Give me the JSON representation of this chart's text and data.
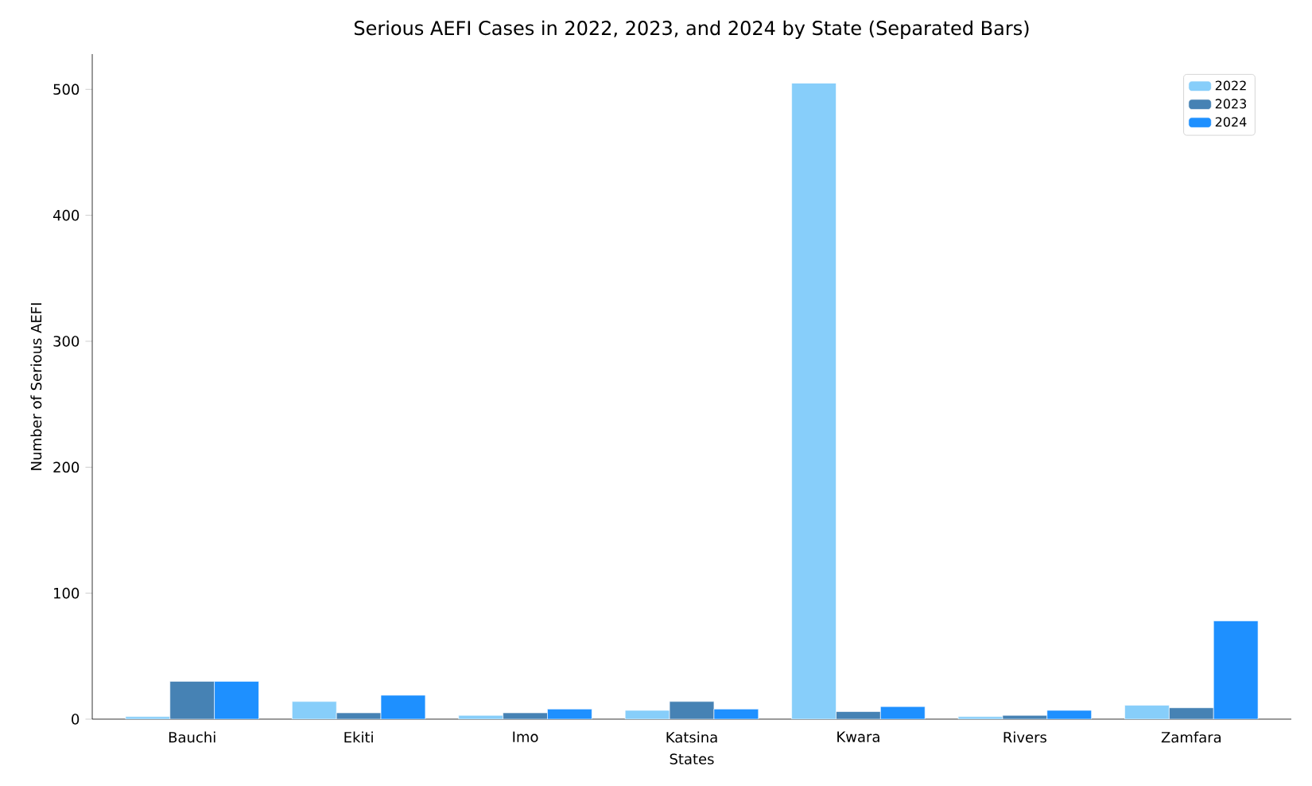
{
  "chart_data": {
    "type": "bar",
    "title": "Serious AEFI Cases in 2022, 2023, and 2024 by State (Separated Bars)",
    "xlabel": "States",
    "ylabel": "Number of Serious AEFI",
    "categories": [
      "Bauchi",
      "Ekiti",
      "Imo",
      "Katsina",
      "Kwara",
      "Rivers",
      "Zamfara"
    ],
    "series": [
      {
        "name": "2022",
        "color": "#87cefa",
        "values": [
          2,
          14,
          3,
          7,
          505,
          2,
          11
        ]
      },
      {
        "name": "2023",
        "color": "#4682b4",
        "values": [
          30,
          5,
          5,
          14,
          6,
          3,
          9
        ]
      },
      {
        "name": "2024",
        "color": "#1e90ff",
        "values": [
          30,
          19,
          8,
          8,
          10,
          7,
          78
        ]
      }
    ],
    "ylim": [
      0,
      528
    ],
    "yticks": [
      0,
      100,
      200,
      300,
      400,
      500
    ],
    "legend": "top right",
    "grid": false
  }
}
